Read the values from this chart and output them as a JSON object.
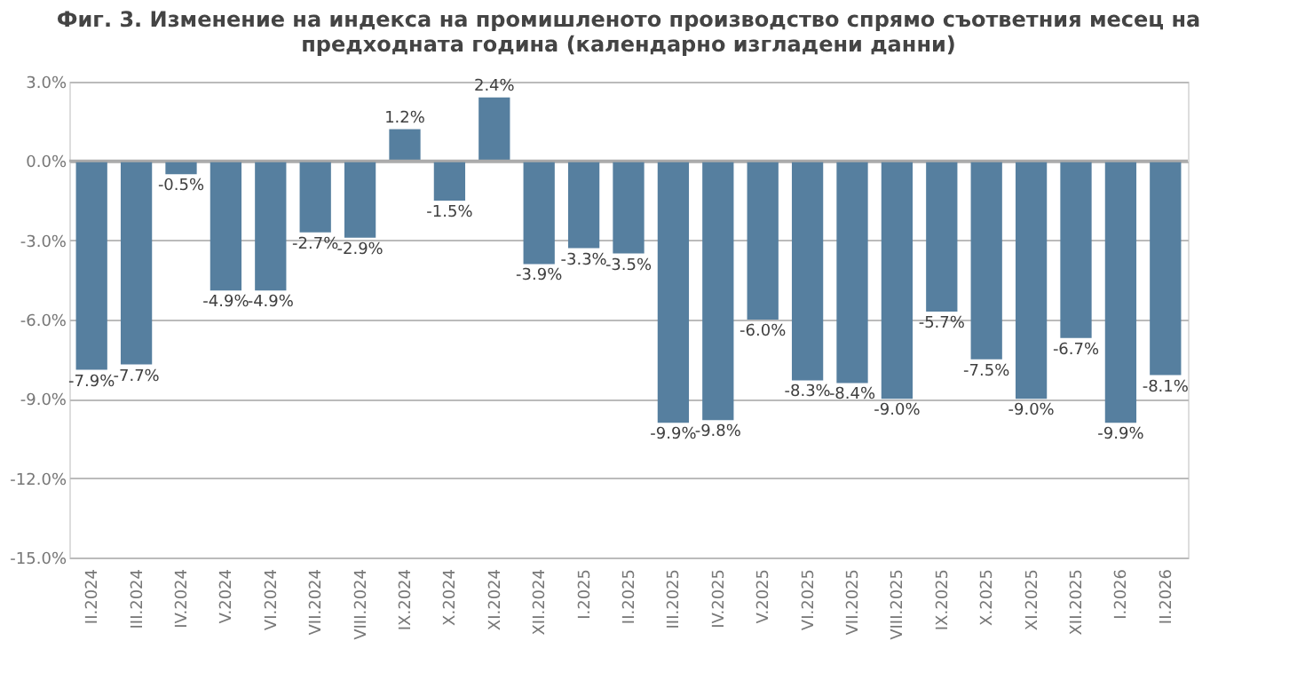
{
  "chart_data": {
    "type": "bar",
    "title": "Фиг. 3. Изменение на индекса на промишленото производство спрямо съответния месец на предходната година (календарно изгладени данни)",
    "categories": [
      "II.2024",
      "III.2024",
      "IV.2024",
      "V.2024",
      "VI.2024",
      "VII.2024",
      "VIII.2024",
      "IX.2024",
      "X.2024",
      "XI.2024",
      "XII.2024",
      "I.2025",
      "II.2025",
      "III.2025",
      "IV.2025",
      "V.2025",
      "VI.2025",
      "VII.2025",
      "VIII.2025",
      "IX.2025",
      "X.2025",
      "XI.2025",
      "XII.2025",
      "I.2026",
      "II.2026"
    ],
    "values": [
      -7.9,
      -7.7,
      -0.5,
      -4.9,
      -4.9,
      -2.7,
      -2.9,
      1.2,
      -1.5,
      2.4,
      -3.9,
      -3.3,
      -3.5,
      -9.9,
      -9.8,
      -6.0,
      -8.3,
      -8.4,
      -9.0,
      -5.7,
      -7.5,
      -9.0,
      -6.7,
      -9.9,
      -8.1
    ],
    "value_labels": [
      "-7.9%",
      "-7.7%",
      "-0.5%",
      "-4.9%",
      "-4.9%",
      "-2.7%",
      "-2.9%",
      "1.2%",
      "-1.5%",
      "2.4%",
      "-3.9%",
      "-3.3%",
      "-3.5%",
      "-9.9%",
      "-9.8%",
      "-6.0%",
      "-8.3%",
      "-8.4%",
      "-9.0%",
      "-5.7%",
      "-7.5%",
      "-9.0%",
      "-6.7%",
      "-9.9%",
      "-8.1%"
    ],
    "color": "#567f9f",
    "ylim": [
      -15,
      3
    ],
    "yticks": [
      {
        "value": 3,
        "label": "3.0%"
      },
      {
        "value": 0,
        "label": "0.0%"
      },
      {
        "value": -3,
        "label": "-3.0%"
      },
      {
        "value": -6,
        "label": "-6.0%"
      },
      {
        "value": -9,
        "label": "-9.0%"
      },
      {
        "value": -12,
        "label": "-12.0%"
      },
      {
        "value": -15,
        "label": "-15.0%"
      }
    ],
    "grid": "y"
  }
}
